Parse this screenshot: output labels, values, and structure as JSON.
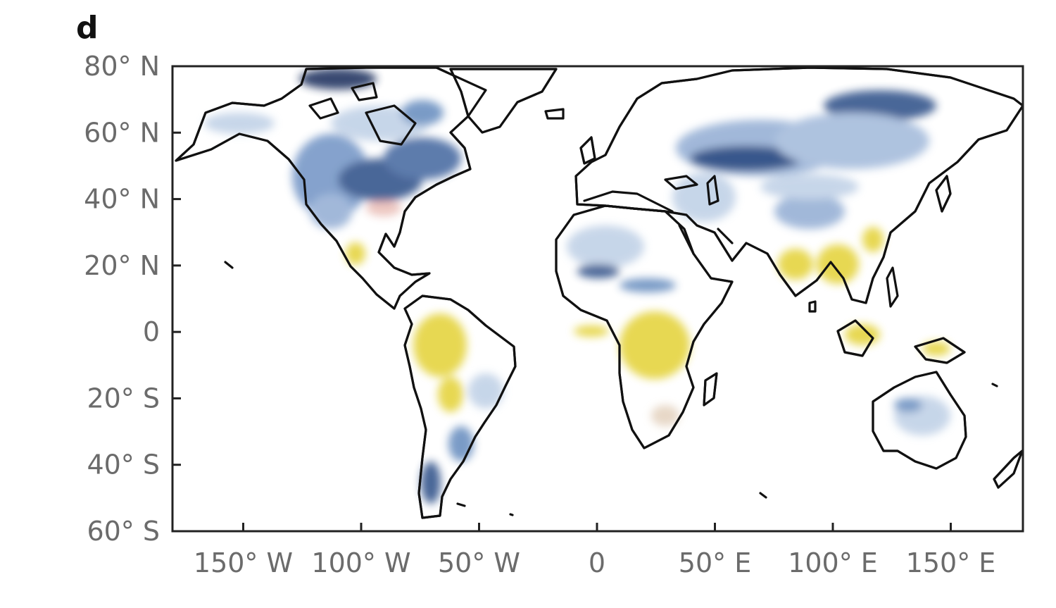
{
  "panel_label": "d",
  "map": {
    "x_ticks": [
      {
        "lon": -150,
        "label": "150° W"
      },
      {
        "lon": -100,
        "label": "100° W"
      },
      {
        "lon": -50,
        "label": "50° W"
      },
      {
        "lon": 0,
        "label": "0"
      },
      {
        "lon": 50,
        "label": "50° E"
      },
      {
        "lon": 100,
        "label": "100° E"
      },
      {
        "lon": 150,
        "label": "150° E"
      }
    ],
    "y_ticks": [
      {
        "lat": 80,
        "label": "80° N"
      },
      {
        "lat": 60,
        "label": "60° N"
      },
      {
        "lat": 40,
        "label": "40° N"
      },
      {
        "lat": 20,
        "label": "20° N"
      },
      {
        "lat": 0,
        "label": "0"
      },
      {
        "lat": -20,
        "label": "20° S"
      },
      {
        "lat": -40,
        "label": "40° S"
      },
      {
        "lat": -60,
        "label": "60° S"
      }
    ],
    "colors": {
      "coastline": "#111111",
      "dark_blue": "#2f4f86",
      "mid_blue": "#7396c4",
      "light_blue": "#c4d4e8",
      "yellow": "#e6d64a",
      "red": "#d98a7c"
    }
  }
}
